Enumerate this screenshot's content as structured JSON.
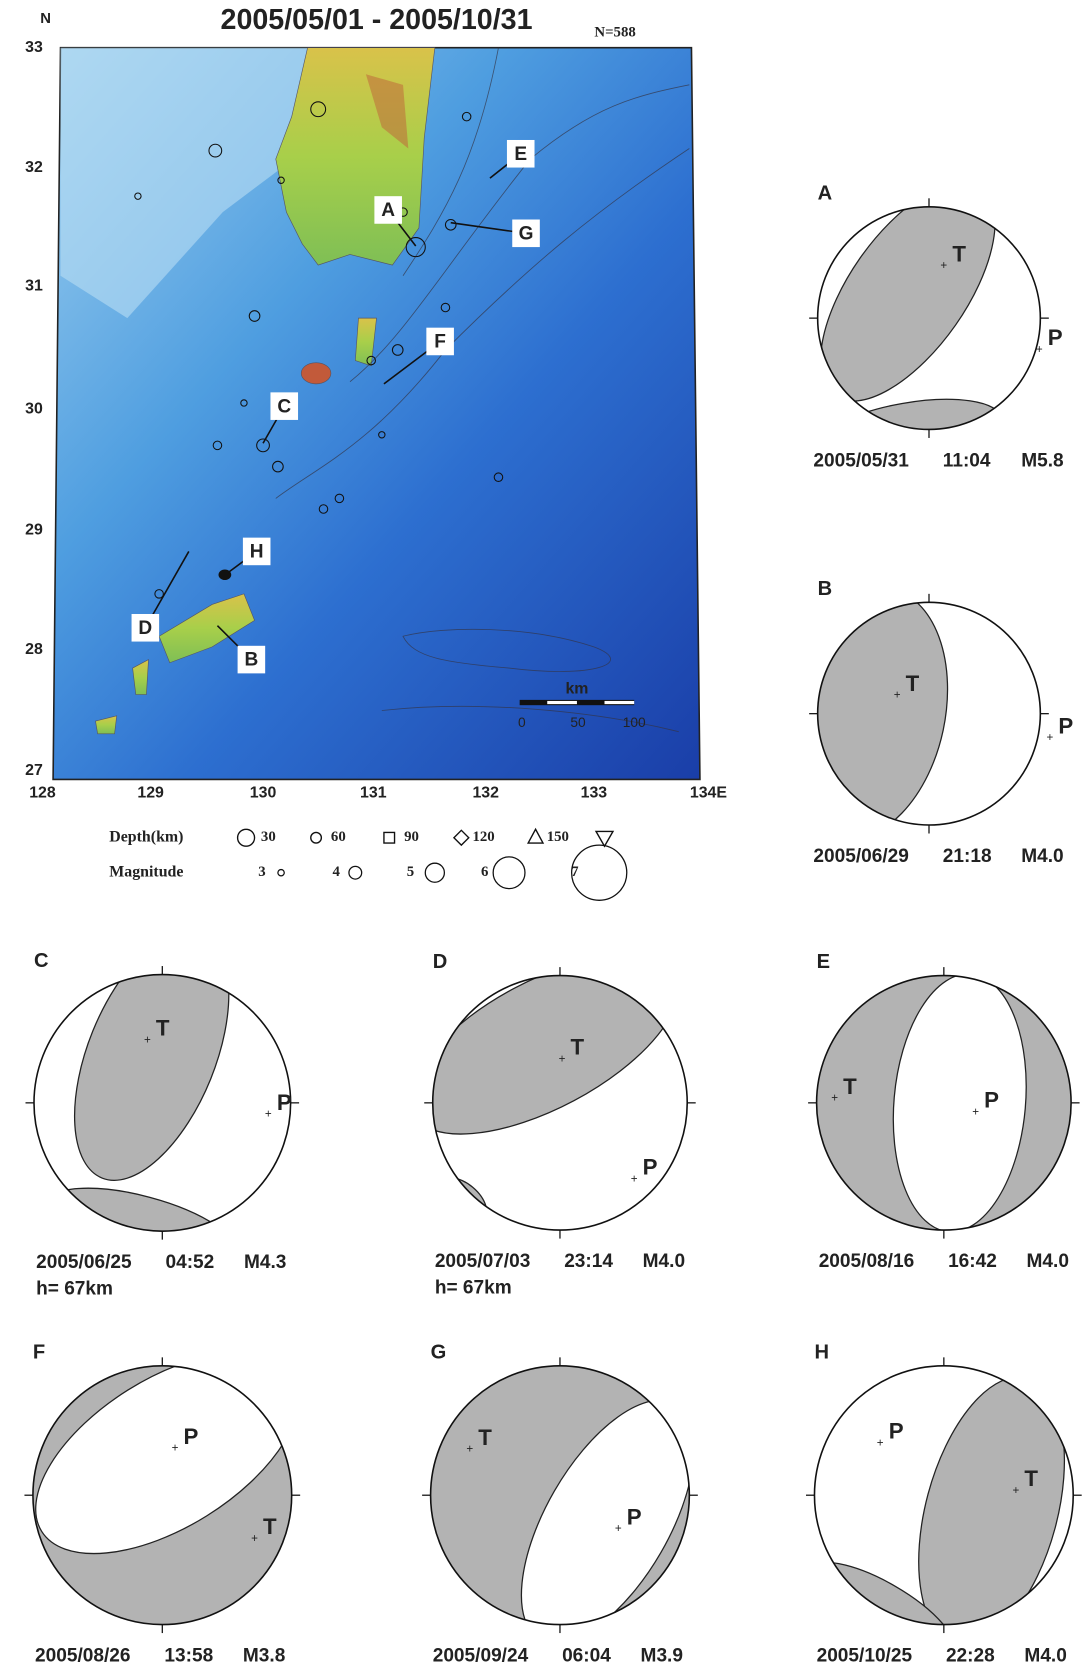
{
  "title": "2005/05/01 - 2005/10/31",
  "count": "N=588",
  "north": "N",
  "lat_labels": [
    "33",
    "32",
    "31",
    "30",
    "29",
    "28",
    "27"
  ],
  "lon_labels": [
    "128",
    "129",
    "130",
    "131",
    "132",
    "133",
    "134E"
  ],
  "map_labels": [
    "A",
    "B",
    "C",
    "D",
    "E",
    "F",
    "G",
    "H"
  ],
  "scale": {
    "title": "km",
    "labels": [
      "0",
      "50",
      "100"
    ]
  },
  "legend": {
    "depth_title": "Depth(km)",
    "depths": [
      "30",
      "60",
      "90",
      "120",
      "150"
    ],
    "magnitude_title": "Magnitude",
    "magnitudes": [
      "3",
      "4",
      "5",
      "6",
      "7"
    ]
  },
  "mechanisms": [
    {
      "label": "A",
      "date": "2005/05/31",
      "time": "11:04",
      "magnitude": "M5.8",
      "t_axis": "T",
      "p_axis": "P"
    },
    {
      "label": "B",
      "date": "2005/06/29",
      "time": "21:18",
      "magnitude": "M4.0",
      "t_axis": "T",
      "p_axis": "P"
    },
    {
      "label": "C",
      "date": "2005/06/25",
      "time": "04:52",
      "magnitude": "M4.3",
      "depth": "h= 67km",
      "t_axis": "T",
      "p_axis": "P"
    },
    {
      "label": "D",
      "date": "2005/07/03",
      "time": "23:14",
      "magnitude": "M4.0",
      "depth": "h= 67km",
      "t_axis": "T",
      "p_axis": "P"
    },
    {
      "label": "E",
      "date": "2005/08/16",
      "time": "16:42",
      "magnitude": "M4.0",
      "t_axis": "T",
      "p_axis": "P"
    },
    {
      "label": "F",
      "date": "2005/08/26",
      "time": "13:58",
      "magnitude": "M3.8",
      "t_axis": "T",
      "p_axis": "P"
    },
    {
      "label": "G",
      "date": "2005/09/24",
      "time": "06:04",
      "magnitude": "M3.9",
      "t_axis": "T",
      "p_axis": "P"
    },
    {
      "label": "H",
      "date": "2005/10/25",
      "time": "22:28",
      "magnitude": "M4.0",
      "t_axis": "T",
      "p_axis": "P"
    }
  ]
}
